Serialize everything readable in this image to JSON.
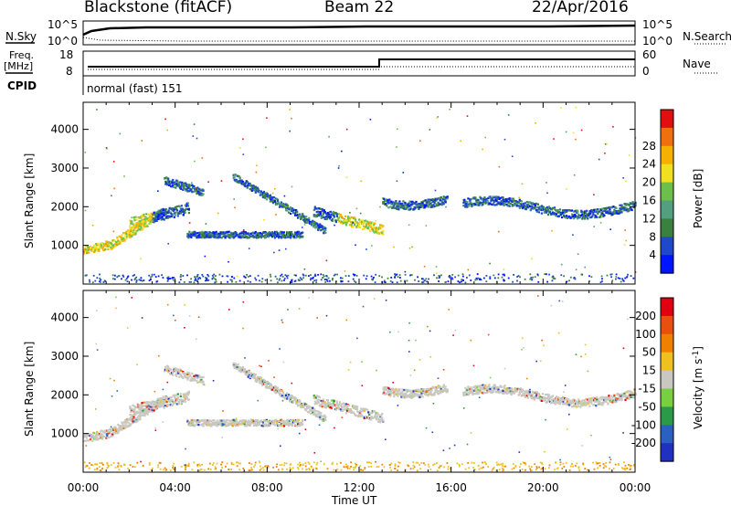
{
  "header": {
    "station": "Blackstone (fitACF)",
    "beam": "Beam 22",
    "date": "22/Apr/2016"
  },
  "top_panels": {
    "nsky_label": "N.Sky",
    "nsearch_label": "N.Search",
    "nsky_ticks": [
      "10^5",
      "10^0"
    ],
    "right_ticks_top": [
      "10^5",
      "10^0"
    ],
    "freq_label": "Freq.",
    "freq_unit": "[MHz]",
    "freq_ticks": [
      "18",
      "8"
    ],
    "nave_label": "Nave",
    "nave_ticks": [
      "60",
      "0"
    ],
    "cpid_label": "CPID",
    "cpid_value": "normal (fast) 151"
  },
  "colors": {
    "power_scale": [
      "#0015ff",
      "#1f49c8",
      "#3c8040",
      "#52a080",
      "#6cc04a",
      "#f0e020",
      "#f5b000",
      "#f07010",
      "#e01010"
    ],
    "velocity_scale": [
      "#2030c0",
      "#2a60c0",
      "#2b9a48",
      "#78d040",
      "#c8c8c0",
      "#f0c020",
      "#f08000",
      "#e85010",
      "#e00010"
    ]
  },
  "chart_data": [
    {
      "type": "heatmap",
      "title": "Power",
      "xlabel": "Time UT",
      "ylabel": "Slant Range [km]",
      "x_ticks": [
        "00:00",
        "04:00",
        "08:00",
        "12:00",
        "16:00",
        "20:00",
        "00:00"
      ],
      "y_ticks": [
        1000,
        2000,
        3000,
        4000
      ],
      "ylim": [
        0,
        4700
      ],
      "colorbar_label": "Power [dB]",
      "colorbar_ticks": [
        4,
        8,
        12,
        16,
        20,
        24,
        28
      ]
    },
    {
      "type": "heatmap",
      "title": "Velocity",
      "xlabel": "Time UT",
      "ylabel": "Slant Range [km]",
      "x_ticks": [
        "00:00",
        "04:00",
        "08:00",
        "12:00",
        "16:00",
        "20:00",
        "00:00"
      ],
      "y_ticks": [
        1000,
        2000,
        3000,
        4000
      ],
      "ylim": [
        0,
        4700
      ],
      "colorbar_label": "Velocity [m s^-1]",
      "colorbar_ticks": [
        200,
        100,
        50,
        15,
        -15,
        -50,
        -100,
        -200
      ]
    }
  ]
}
